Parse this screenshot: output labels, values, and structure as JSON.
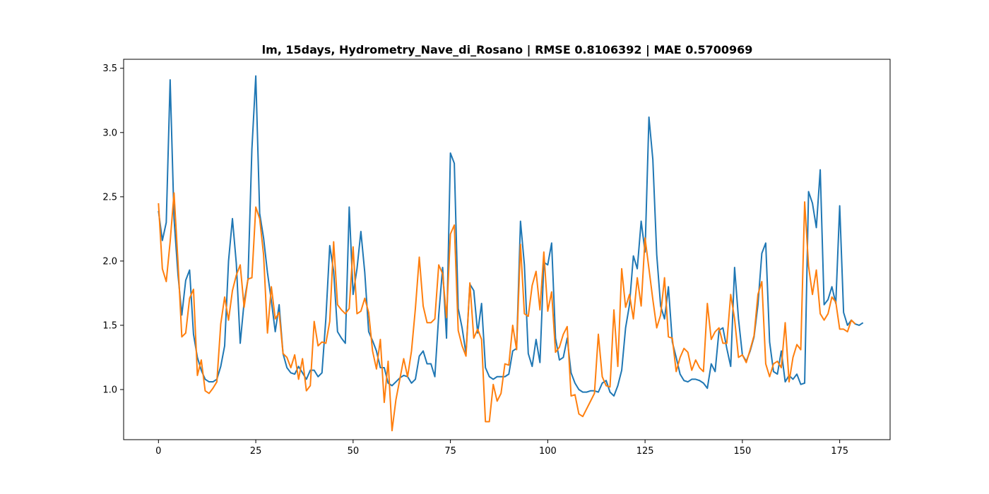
{
  "chart_data": {
    "type": "line",
    "title": "lm, 15days, Hydrometry_Nave_di_Rosano | RMSE 0.8106392 | MAE 0.5700969",
    "xlabel": "",
    "ylabel": "",
    "xlim": [
      -8.95,
      187.95
    ],
    "ylim": [
      0.61,
      3.57
    ],
    "x_ticks": [
      0,
      25,
      50,
      75,
      100,
      125,
      150,
      175
    ],
    "y_ticks": [
      1.0,
      1.5,
      2.0,
      2.5,
      3.0,
      3.5
    ],
    "grid": false,
    "legend": "none",
    "series": [
      {
        "color": "#1f77b4",
        "x_start": 0,
        "values": [
          2.39,
          2.16,
          2.3,
          3.41,
          2.33,
          1.9,
          1.58,
          1.85,
          1.93,
          1.43,
          1.25,
          1.15,
          1.08,
          1.06,
          1.06,
          1.08,
          1.18,
          1.34,
          2.0,
          2.33,
          1.98,
          1.36,
          1.68,
          1.86,
          2.87,
          3.44,
          2.37,
          2.18,
          1.91,
          1.69,
          1.45,
          1.66,
          1.28,
          1.17,
          1.13,
          1.12,
          1.18,
          1.13,
          1.08,
          1.15,
          1.15,
          1.1,
          1.13,
          1.55,
          2.12,
          1.92,
          1.45,
          1.4,
          1.36,
          2.42,
          1.74,
          1.94,
          2.23,
          1.91,
          1.45,
          1.38,
          1.3,
          1.17,
          1.17,
          1.05,
          1.03,
          1.06,
          1.09,
          1.11,
          1.1,
          1.05,
          1.08,
          1.26,
          1.3,
          1.2,
          1.2,
          1.1,
          1.58,
          1.95,
          1.4,
          2.84,
          2.76,
          1.63,
          1.48,
          1.28,
          1.82,
          1.77,
          1.44,
          1.67,
          1.17,
          1.1,
          1.08,
          1.1,
          1.1,
          1.1,
          1.12,
          1.3,
          1.32,
          2.31,
          1.97,
          1.28,
          1.18,
          1.39,
          1.21,
          1.99,
          1.97,
          2.14,
          1.4,
          1.23,
          1.25,
          1.4,
          1.13,
          1.05,
          1.0,
          0.98,
          0.98,
          0.99,
          0.99,
          0.98,
          1.05,
          1.07,
          0.98,
          0.95,
          1.03,
          1.15,
          1.48,
          1.66,
          2.04,
          1.94,
          2.31,
          2.07,
          3.12,
          2.79,
          2.05,
          1.65,
          1.55,
          1.8,
          1.37,
          1.25,
          1.12,
          1.07,
          1.06,
          1.08,
          1.08,
          1.07,
          1.05,
          1.01,
          1.2,
          1.14,
          1.46,
          1.48,
          1.32,
          1.18,
          1.95,
          1.55,
          1.27,
          1.22,
          1.3,
          1.41,
          1.66,
          2.06,
          2.14,
          1.37,
          1.14,
          1.12,
          1.3,
          1.06,
          1.11,
          1.08,
          1.12,
          1.04,
          1.05,
          2.54,
          2.45,
          2.26,
          2.71,
          1.66,
          1.7,
          1.8,
          1.67,
          2.43,
          1.6,
          1.5,
          1.54,
          1.51,
          1.5,
          1.52
        ]
      },
      {
        "color": "#ff7f0e",
        "x_start": 0,
        "values": [
          2.45,
          1.94,
          1.84,
          2.15,
          2.53,
          2.0,
          1.41,
          1.44,
          1.71,
          1.78,
          1.11,
          1.23,
          0.99,
          0.97,
          1.01,
          1.06,
          1.51,
          1.72,
          1.54,
          1.77,
          1.89,
          1.97,
          1.64,
          1.86,
          1.87,
          2.42,
          2.33,
          2.05,
          1.44,
          1.8,
          1.55,
          1.6,
          1.28,
          1.25,
          1.17,
          1.27,
          1.08,
          1.24,
          0.99,
          1.03,
          1.53,
          1.34,
          1.37,
          1.36,
          1.53,
          2.15,
          1.66,
          1.62,
          1.59,
          1.63,
          2.11,
          1.59,
          1.61,
          1.71,
          1.6,
          1.3,
          1.16,
          1.39,
          0.9,
          1.22,
          0.68,
          0.92,
          1.08,
          1.24,
          1.1,
          1.3,
          1.63,
          2.03,
          1.65,
          1.52,
          1.52,
          1.55,
          1.97,
          1.9,
          1.56,
          2.21,
          2.28,
          1.46,
          1.34,
          1.26,
          1.83,
          1.4,
          1.47,
          1.39,
          0.75,
          0.75,
          1.04,
          0.91,
          0.97,
          1.2,
          1.19,
          1.5,
          1.31,
          2.13,
          1.59,
          1.57,
          1.81,
          1.92,
          1.62,
          2.07,
          1.61,
          1.76,
          1.29,
          1.33,
          1.43,
          1.49,
          0.95,
          0.96,
          0.81,
          0.79,
          0.85,
          0.91,
          0.97,
          1.43,
          1.1,
          1.03,
          1.02,
          1.62,
          1.18,
          1.94,
          1.64,
          1.74,
          1.55,
          1.87,
          1.65,
          2.18,
          1.94,
          1.7,
          1.48,
          1.58,
          1.87,
          1.41,
          1.4,
          1.14,
          1.25,
          1.32,
          1.29,
          1.15,
          1.23,
          1.17,
          1.14,
          1.67,
          1.39,
          1.45,
          1.48,
          1.36,
          1.36,
          1.74,
          1.55,
          1.25,
          1.27,
          1.21,
          1.31,
          1.42,
          1.74,
          1.84,
          1.2,
          1.1,
          1.2,
          1.22,
          1.17,
          1.52,
          1.06,
          1.25,
          1.35,
          1.31,
          2.46,
          1.96,
          1.74,
          1.93,
          1.59,
          1.54,
          1.59,
          1.72,
          1.68,
          1.47,
          1.47,
          1.45,
          1.54,
          1.51
        ]
      }
    ]
  }
}
